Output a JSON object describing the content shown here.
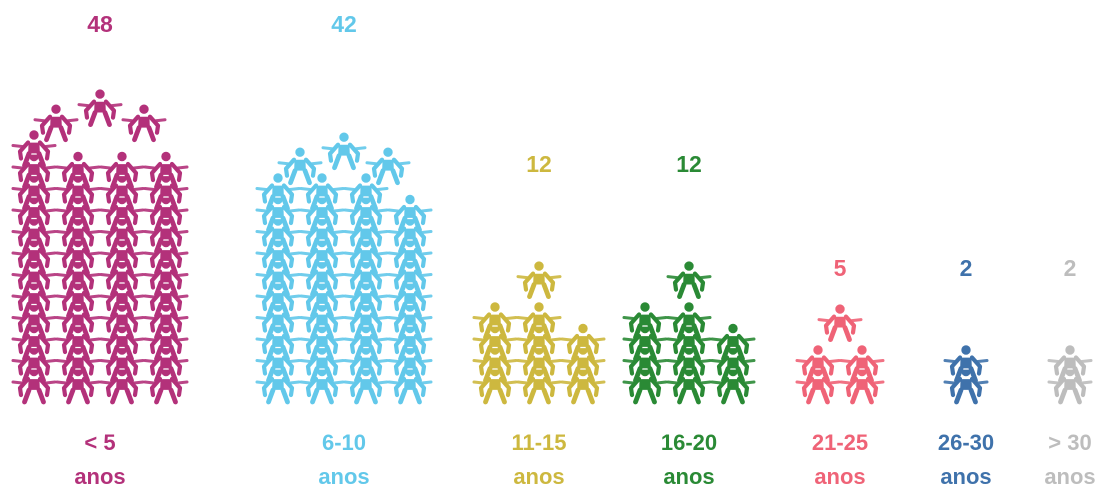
{
  "chart_data": {
    "type": "bar",
    "style": "pictogram-human-towers",
    "categories": [
      {
        "range": "< 5",
        "unit": "anos"
      },
      {
        "range": "6-10",
        "unit": "anos"
      },
      {
        "range": "11-15",
        "unit": "anos"
      },
      {
        "range": "16-20",
        "unit": "anos"
      },
      {
        "range": "21-25",
        "unit": "anos"
      },
      {
        "range": "26-30",
        "unit": "anos"
      },
      {
        "range": "> 30",
        "unit": "anos"
      }
    ],
    "values": [
      48,
      42,
      12,
      12,
      5,
      2,
      2
    ],
    "colors": [
      "#b3317a",
      "#62c8ea",
      "#cdb83f",
      "#2a8a35",
      "#ef6377",
      "#3f72ab",
      "#bdbdbd"
    ],
    "title": "",
    "xlabel": "",
    "ylabel": "",
    "grid": false,
    "legend": "none"
  }
}
